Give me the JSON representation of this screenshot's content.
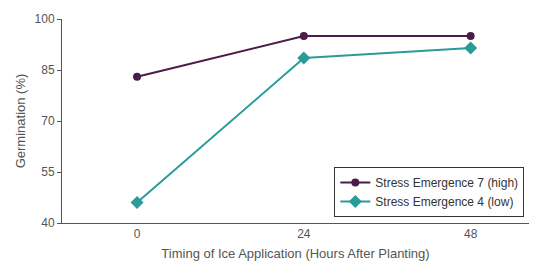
{
  "chart_data": {
    "type": "line",
    "x_label": "Timing of Ice Application (Hours After Planting)",
    "y_label": "Germination (%)",
    "categories": [
      "0",
      "24",
      "48"
    ],
    "series": [
      {
        "name": "Stress Emergence 7 (high)",
        "color": "#4b1c47",
        "marker": "circle",
        "line_style": "solid",
        "values": [
          83,
          95,
          95
        ]
      },
      {
        "name": "Stress Emergence 4 (low)",
        "color": "#2a9c98",
        "marker": "diamond",
        "line_style": "solid",
        "values": [
          46,
          88.5,
          91.5
        ]
      }
    ],
    "ylim": [
      40,
      100
    ],
    "yticks": [
      40,
      55,
      70,
      85,
      100
    ],
    "grid": false,
    "legend": "lower right"
  }
}
